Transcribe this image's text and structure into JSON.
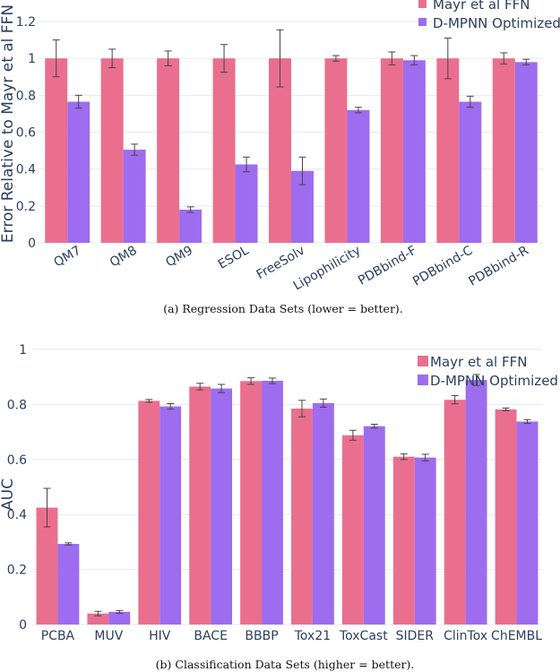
{
  "colors": {
    "mayr": "#ea6f8e",
    "dmpnn": "#9e6cef",
    "err": "#444444",
    "axis_text": "#2a3f5f"
  },
  "chart_data": [
    {
      "id": "regression",
      "type": "bar",
      "title": "",
      "ylabel": "Error Relative to Mayr et al FFN",
      "ylim": [
        0,
        1.2
      ],
      "yticks": [
        0,
        0.2,
        0.4,
        0.6,
        0.8,
        1,
        1.2
      ],
      "yticklabels": [
        "0",
        "0.2",
        "0.4",
        "0.6",
        "0.8",
        "1",
        "1.2"
      ],
      "categories": [
        "QM7",
        "QM8",
        "QM9",
        "ESOL",
        "FreeSolv",
        "Lipophilicity",
        "PDBbind-F",
        "PDBbind-C",
        "PDBbind-R"
      ],
      "series": [
        {
          "name": "Mayr et al FFN",
          "values": [
            1,
            1,
            1,
            1,
            1,
            1,
            1,
            1,
            1
          ],
          "errors": [
            0.1,
            0.05,
            0.04,
            0.075,
            0.155,
            0.015,
            0.035,
            0.11,
            0.03
          ]
        },
        {
          "name": "D-MPNN Optimized",
          "values": [
            0.765,
            0.505,
            0.18,
            0.425,
            0.39,
            0.72,
            0.99,
            0.765,
            0.98
          ],
          "errors": [
            0.035,
            0.03,
            0.015,
            0.04,
            0.075,
            0.015,
            0.025,
            0.03,
            0.015
          ]
        }
      ],
      "legend_position": "top-right",
      "caption": "(a) Regression Data Sets (lower = better)."
    },
    {
      "id": "classification",
      "type": "bar",
      "title": "",
      "ylabel": "AUC",
      "ylim": [
        0,
        1
      ],
      "yticks": [
        0,
        0.2,
        0.4,
        0.6,
        0.8,
        1
      ],
      "yticklabels": [
        "0",
        "0.2",
        "0.4",
        "0.6",
        "0.8",
        "1"
      ],
      "categories": [
        "PCBA",
        "MUV",
        "HIV",
        "BACE",
        "BBBP",
        "Tox21",
        "ToxCast",
        "SIDER",
        "ClinTox",
        "ChEMBL"
      ],
      "series": [
        {
          "name": "Mayr et al FFN",
          "values": [
            0.425,
            0.04,
            0.813,
            0.865,
            0.885,
            0.785,
            0.688,
            0.61,
            0.817,
            0.782
          ],
          "errors": [
            0.07,
            0.008,
            0.005,
            0.012,
            0.012,
            0.03,
            0.018,
            0.01,
            0.015,
            0.005
          ]
        },
        {
          "name": "D-MPNN Optimized",
          "values": [
            0.293,
            0.046,
            0.793,
            0.858,
            0.886,
            0.805,
            0.721,
            0.607,
            0.889,
            0.738
          ],
          "errors": [
            0.004,
            0.005,
            0.01,
            0.015,
            0.01,
            0.015,
            0.007,
            0.012,
            0.02,
            0.007
          ]
        }
      ],
      "legend_position": "top-right",
      "caption": "(b) Classification Data Sets (higher = better)."
    }
  ]
}
